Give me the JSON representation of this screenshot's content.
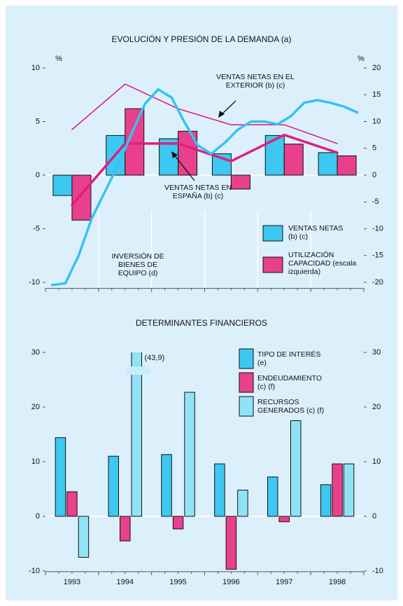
{
  "chart_data": [
    {
      "type": "bar",
      "title": "EVOLUCIÓN Y PRESIÓN DE LA DEMANDA (a)",
      "y_unit": "%",
      "y2_unit": "%",
      "ylim": [
        -10.5,
        10.5
      ],
      "yticks": [
        -10,
        -5,
        0,
        5,
        10
      ],
      "y2lim": [
        -21,
        21
      ],
      "y2ticks": [
        -20,
        -15,
        -10,
        -5,
        0,
        5,
        10,
        15,
        20
      ],
      "series": [
        {
          "name": "VENTAS NETAS (b) (c)",
          "type": "bar",
          "color": "#3cc8f0",
          "values": [
            -1.9,
            3.7,
            3.4,
            2.0,
            3.7,
            2.1
          ]
        },
        {
          "name": "UTILIZACIÓN CAPACIDAD (escala izquierda)",
          "type": "bar",
          "color": "#e8408c",
          "values": [
            -4.2,
            6.2,
            4.1,
            -1.3,
            2.9,
            1.8
          ]
        },
        {
          "name": "VENTAS NETAS EN EL EXTERIOR (b) (c)",
          "type": "line",
          "axis": "y2",
          "color": "#e0147a",
          "width": 1.5,
          "values": [
            8.5,
            17.0,
            12.4,
            9.4,
            9.4,
            5.9
          ]
        },
        {
          "name": "VENTAS NETAS EN ESPAÑA (b) (c)",
          "type": "line",
          "axis": "y2",
          "color": "#e0207a",
          "width": 3.5,
          "values": [
            -5.6,
            5.9,
            5.9,
            2.6,
            7.5,
            4.2
          ]
        },
        {
          "name": "INVERSIÓN DE BIENES DE EQUIPO (d)",
          "type": "line",
          "axis": "y2",
          "color": "#36c2f2",
          "width": 3.5,
          "values": [
            -20.5,
            -20.2,
            -15,
            -8,
            -3,
            2,
            7.8,
            13.3,
            16,
            14.5,
            9.8,
            5.5,
            4,
            6,
            8.5,
            10,
            10,
            9.5,
            11,
            13.5,
            14,
            13.5,
            12.8,
            11.7
          ]
        }
      ]
    },
    {
      "type": "bar",
      "title": "DETERMINANTES FINANCIEROS",
      "categories": [
        "1993",
        "1994",
        "1995",
        "1996",
        "1997",
        "1998"
      ],
      "ylim": [
        -10,
        30
      ],
      "yticks": [
        -10,
        0,
        10,
        20,
        30
      ],
      "y2lim": [
        -10,
        30
      ],
      "y2ticks": [
        -10,
        0,
        10,
        20,
        30
      ],
      "series": [
        {
          "name": "TIPO DE INTERÉS (e)",
          "color": "#3cc8f0",
          "values": [
            14.4,
            11.0,
            11.3,
            9.6,
            7.2,
            5.8
          ]
        },
        {
          "name": "ENDEUDAMIENTO (c) (f)",
          "color": "#e8408c",
          "values": [
            4.5,
            -4.5,
            -2.3,
            -9.7,
            -1.0,
            9.6
          ]
        },
        {
          "name": "RECURSOS GENERADOS (c) (f)",
          "color": "#8fe3f5",
          "values": [
            -7.5,
            43.9,
            22.7,
            4.8,
            17.5,
            9.6
          ],
          "value_labels": [
            null,
            "(43,9)",
            null,
            null,
            null,
            null
          ]
        }
      ]
    }
  ]
}
